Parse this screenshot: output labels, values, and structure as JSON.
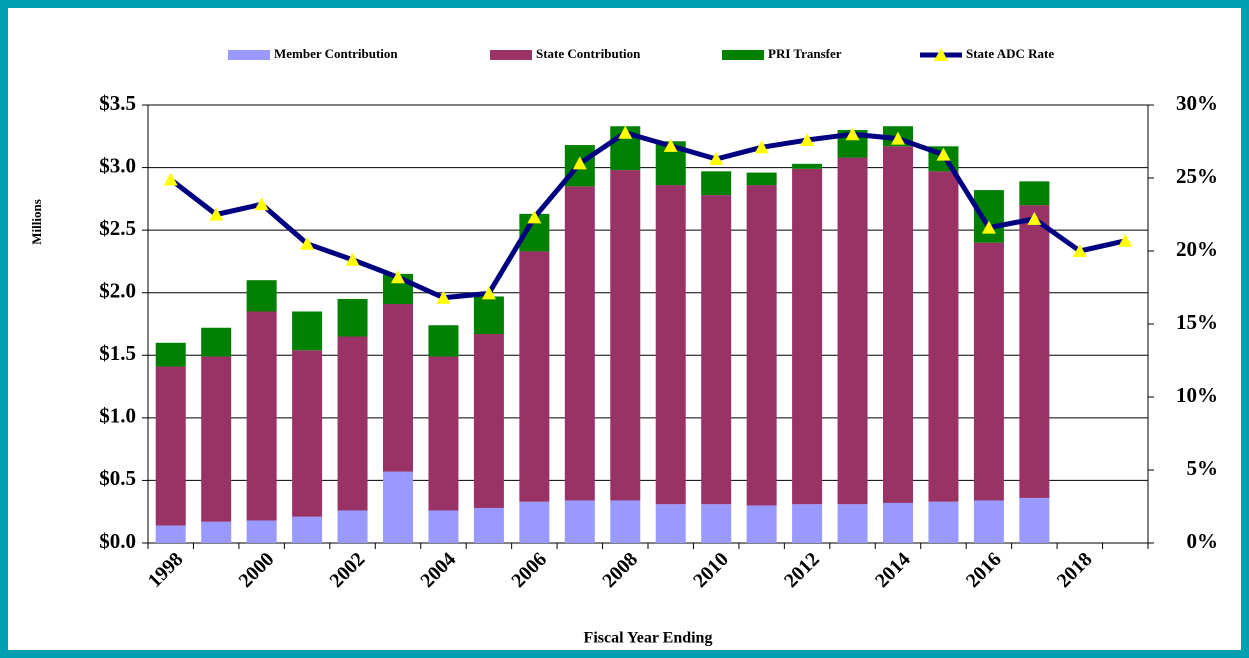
{
  "chart_data": {
    "type": "bar",
    "x_label": "Fiscal Year Ending",
    "y_label": "Millions",
    "categories": [
      "1998",
      null,
      "2000",
      null,
      "2002",
      null,
      "2004",
      null,
      "2006",
      null,
      "2008",
      null,
      "2010",
      null,
      "2012",
      null,
      "2014",
      null,
      "2016",
      null,
      "2018",
      null
    ],
    "series": [
      {
        "name": "Member Contribution",
        "color": "#9999ff",
        "values": [
          0.14,
          0.17,
          0.18,
          0.21,
          0.26,
          0.57,
          0.26,
          0.28,
          0.33,
          0.34,
          0.34,
          0.31,
          0.31,
          0.3,
          0.31,
          0.31,
          0.32,
          0.33,
          0.34,
          0.36,
          null,
          null
        ]
      },
      {
        "name": "State Contribution",
        "color": "#993366",
        "values": [
          1.27,
          1.32,
          1.67,
          1.33,
          1.39,
          1.34,
          1.23,
          1.39,
          2.0,
          2.51,
          2.64,
          2.55,
          2.47,
          2.56,
          2.68,
          2.77,
          2.85,
          2.64,
          2.06,
          2.34,
          null,
          null
        ]
      },
      {
        "name": "PRI Transfer",
        "color": "#008000",
        "values": [
          0.19,
          0.23,
          0.25,
          0.31,
          0.3,
          0.24,
          0.25,
          0.3,
          0.3,
          0.33,
          0.35,
          0.35,
          0.19,
          0.1,
          0.04,
          0.22,
          0.16,
          0.2,
          0.42,
          0.19,
          null,
          null
        ]
      },
      {
        "name": "State ADC Rate",
        "type": "line",
        "axis": "y2",
        "color": "#000080",
        "marker_color": "#ffff00",
        "values": [
          24.9,
          22.5,
          23.2,
          20.5,
          19.4,
          18.2,
          16.8,
          17.1,
          22.3,
          26.0,
          28.1,
          27.2,
          26.3,
          27.1,
          27.6,
          28.0,
          27.7,
          26.6,
          21.6,
          22.2,
          20.0,
          20.7
        ]
      }
    ],
    "stacked": true,
    "grid": true,
    "legend": "top",
    "ylim": [
      0,
      3.5
    ],
    "yticks": [
      {
        "value": 0,
        "label": "$0.0"
      },
      {
        "value": 0.5,
        "label": "$0.5"
      },
      {
        "value": 1,
        "label": "$1.0"
      },
      {
        "value": 1.5,
        "label": "$1.5"
      },
      {
        "value": 2,
        "label": "$2.0"
      },
      {
        "value": 2.5,
        "label": "$2.5"
      },
      {
        "value": 3,
        "label": "$3.0"
      },
      {
        "value": 3.5,
        "label": "$3.5"
      }
    ],
    "y2lim": [
      0,
      30
    ],
    "y2ticks": [
      {
        "value": 0,
        "label": "0%"
      },
      {
        "value": 5,
        "label": "5%"
      },
      {
        "value": 10,
        "label": "10%"
      },
      {
        "value": 15,
        "label": "15%"
      },
      {
        "value": 20,
        "label": "20%"
      },
      {
        "value": 25,
        "label": "25%"
      },
      {
        "value": 30,
        "label": "30%"
      }
    ]
  }
}
